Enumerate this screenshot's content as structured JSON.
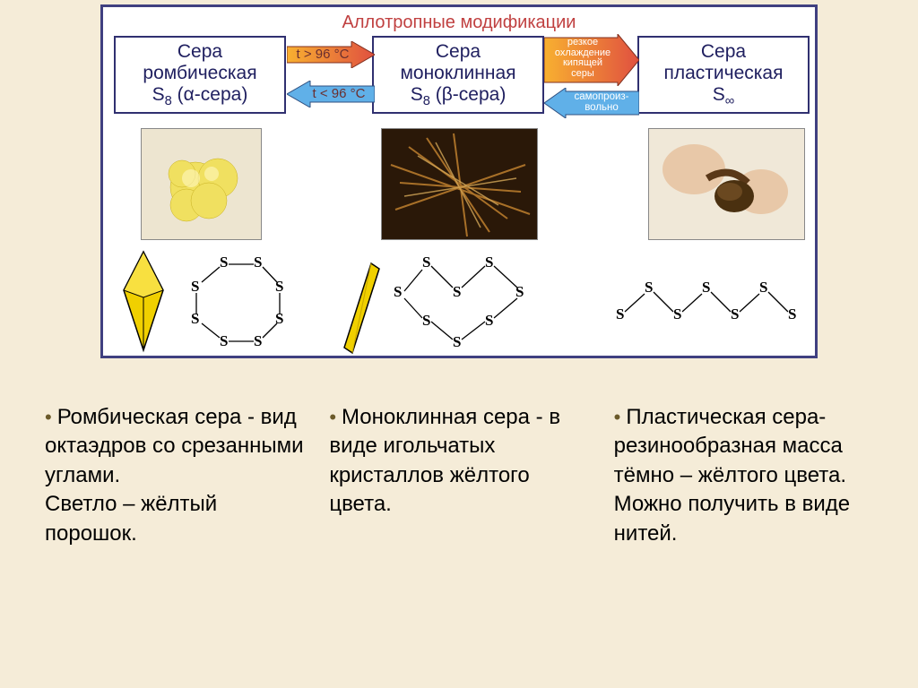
{
  "diagram": {
    "title": "Аллотропные модификации",
    "boxes": {
      "rhombic": {
        "line1": "Сера",
        "line2": "ромбическая",
        "line3_html": "S<sub>8</sub> (α-сера)"
      },
      "monoclinic": {
        "line1": "Сера",
        "line2": "моноклинная",
        "line3_html": "S<sub>8</sub> (β-сера)"
      },
      "plastic": {
        "line1": "Сера",
        "line2": "пластическая",
        "line3_html": "S<sub>∞</sub>"
      }
    },
    "arrows": {
      "a1_label": "t > 96 °C",
      "a2_label": "t < 96 °C",
      "a3_l1": "резкое",
      "a3_l2": "охлаждение",
      "a3_l3": "кипящей",
      "a3_l4": "серы",
      "a4_l1": "самопроиз-",
      "a4_l2": "вольно"
    },
    "colors": {
      "frame_border": "#404080",
      "title_color": "#c04040",
      "box_border": "#303070",
      "red_arrow_fill": "#e05040",
      "red_arrow_grad": "#f8b030",
      "blue_arrow_fill": "#60b0e8",
      "crystal_yellow": "#f0d000",
      "crystal_shade": "#d8b800",
      "page_bg": "#f5ecd8"
    }
  },
  "descriptions": {
    "rhombic": "Ромбическая сера - вид октаэдров со срезанными углами.\nСветло – жёлтый порошок.",
    "monoclinic": "Моноклинная сера - в виде игольчатых кристаллов жёлтого цвета.",
    "plastic": "Пластическая сера- резинообразная масса тёмно – жёлтого цвета. Можно получить в виде нитей."
  }
}
